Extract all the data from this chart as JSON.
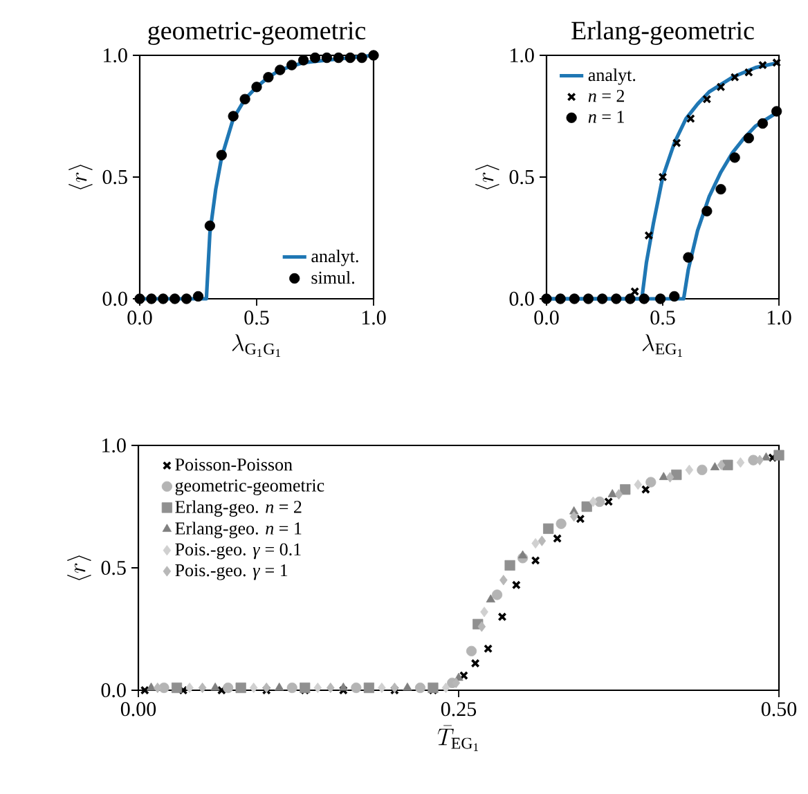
{
  "chart_data": [
    {
      "type": "scatter",
      "title": "geometric-geometric",
      "xlabel": "\\lambda_{\\mathrm{G_1G_1}}",
      "ylabel": "\\langle r \\rangle",
      "xlim": [
        0,
        1
      ],
      "ylim": [
        0,
        1
      ],
      "xticks": [
        {
          "value": 0,
          "label": "0.0"
        },
        {
          "value": 0.5,
          "label": "0.5"
        },
        {
          "value": 1,
          "label": "1.0"
        }
      ],
      "yticks": [
        {
          "value": 0,
          "label": "0.0"
        },
        {
          "value": 0.5,
          "label": "0.5"
        },
        {
          "value": 1,
          "label": "1.0"
        }
      ],
      "legend": "bottom right",
      "series": [
        {
          "name": "analyt.",
          "type": "line",
          "color": "#1f77b4",
          "x": [
            0,
            0.285,
            0.3,
            0.325,
            0.35,
            0.4,
            0.45,
            0.5,
            0.55,
            0.6,
            0.7,
            0.8,
            0.9,
            1.0
          ],
          "values": [
            0,
            0,
            0.27,
            0.45,
            0.58,
            0.74,
            0.82,
            0.87,
            0.91,
            0.94,
            0.97,
            0.98,
            0.99,
            1.0
          ]
        },
        {
          "name": "simul.",
          "marker": "circle",
          "color": "#000000",
          "x": [
            0,
            0.05,
            0.1,
            0.15,
            0.2,
            0.25,
            0.3,
            0.35,
            0.4,
            0.45,
            0.5,
            0.55,
            0.6,
            0.65,
            0.7,
            0.75,
            0.8,
            0.85,
            0.9,
            0.95,
            1.0
          ],
          "values": [
            0,
            0,
            0,
            0,
            0,
            0.01,
            0.3,
            0.59,
            0.75,
            0.82,
            0.87,
            0.91,
            0.94,
            0.96,
            0.98,
            0.99,
            0.99,
            0.99,
            0.99,
            0.99,
            1.0
          ]
        }
      ]
    },
    {
      "type": "scatter",
      "title": "Erlang-geometric",
      "xlabel": "\\lambda_{\\mathrm{EG_1}}",
      "ylabel": "\\langle r \\rangle",
      "xlim": [
        0,
        1
      ],
      "ylim": [
        0,
        1
      ],
      "xticks": [
        {
          "value": 0,
          "label": "0.0"
        },
        {
          "value": 0.5,
          "label": "0.5"
        },
        {
          "value": 1,
          "label": "1.0"
        }
      ],
      "yticks": [
        {
          "value": 0,
          "label": "0.0"
        },
        {
          "value": 0.5,
          "label": "0.5"
        },
        {
          "value": 1,
          "label": "1.0"
        }
      ],
      "legend": "top left",
      "series": [
        {
          "name": "analyt.",
          "type": "line",
          "color": "#1f77b4",
          "x": [
            0,
            0.41,
            0.43,
            0.46,
            0.5,
            0.55,
            0.6,
            0.65,
            0.7,
            0.8,
            0.9,
            1.0
          ],
          "values": [
            0,
            0,
            0.15,
            0.31,
            0.5,
            0.64,
            0.74,
            0.8,
            0.85,
            0.91,
            0.95,
            0.97
          ]
        },
        {
          "name": "*n* = 2",
          "marker": "cross",
          "color": "#000000",
          "x": [
            0.38,
            0.44,
            0.5,
            0.56,
            0.62,
            0.69,
            0.75,
            0.81,
            0.87,
            0.93,
            0.99
          ],
          "values": [
            0.03,
            0.26,
            0.5,
            0.64,
            0.74,
            0.82,
            0.87,
            0.91,
            0.93,
            0.96,
            0.97
          ]
        },
        {
          "name": "*n* = 1",
          "marker": "circle",
          "color": "#000000",
          "x": [
            0,
            0.06,
            0.12,
            0.18,
            0.24,
            0.3,
            0.36,
            0.42,
            0.49,
            0.55,
            0.61,
            0.69,
            0.75,
            0.81,
            0.87,
            0.93,
            0.99
          ],
          "values": [
            0,
            0,
            0,
            0,
            0,
            0,
            0,
            0,
            0,
            0.01,
            0.17,
            0.36,
            0.45,
            0.58,
            0.66,
            0.72,
            0.77
          ]
        },
        {
          "type": "line",
          "color": "#1f77b4",
          "x": [
            0,
            0.59,
            0.61,
            0.65,
            0.7,
            0.75,
            0.8,
            0.85,
            0.9,
            0.95,
            1.0
          ],
          "values": [
            0,
            0,
            0.12,
            0.28,
            0.42,
            0.52,
            0.6,
            0.66,
            0.71,
            0.74,
            0.77
          ]
        }
      ]
    },
    {
      "type": "scatter",
      "xlabel": "\\bar{T}_{\\mathrm{EG_1}}",
      "ylabel": "\\langle r \\rangle",
      "xlim": [
        0,
        0.5
      ],
      "ylim": [
        0,
        1
      ],
      "xticks": [
        {
          "value": 0,
          "label": "0.00"
        },
        {
          "value": 0.25,
          "label": "0.25"
        },
        {
          "value": 0.5,
          "label": "0.50"
        }
      ],
      "yticks": [
        {
          "value": 0,
          "label": "0.0"
        },
        {
          "value": 0.5,
          "label": "0.5"
        },
        {
          "value": 1,
          "label": "1.0"
        }
      ],
      "legend": "top left",
      "series": [
        {
          "name": "Poisson-Poisson",
          "marker": "cross",
          "color": "#000000",
          "x": [
            0.005,
            0.035,
            0.065,
            0.1,
            0.13,
            0.16,
            0.2,
            0.23,
            0.254,
            0.263,
            0.273,
            0.284,
            0.295,
            0.31,
            0.327,
            0.345,
            0.367,
            0.396,
            0.42,
            0.439,
            0.495
          ],
          "values": [
            0,
            0,
            0,
            0,
            0,
            0,
            0,
            0,
            0.06,
            0.11,
            0.17,
            0.3,
            0.43,
            0.53,
            0.62,
            0.7,
            0.77,
            0.82,
            null,
            null,
            0.95
          ]
        },
        {
          "name": "geometric-geometric",
          "marker": "circle",
          "color": "#b4b4b4",
          "x": [
            0.02,
            0.07,
            0.12,
            0.17,
            0.22,
            0.245,
            0.26,
            0.28,
            0.3,
            0.33,
            0.36,
            0.4,
            0.44,
            0.48
          ],
          "values": [
            0.01,
            0.01,
            0.01,
            0.01,
            0.01,
            0.03,
            0.16,
            0.39,
            0.54,
            0.68,
            0.77,
            0.85,
            0.9,
            0.94
          ]
        },
        {
          "name": "Erlang-geo. *n* = 2",
          "marker": "square",
          "color": "#909090",
          "x": [
            0.03,
            0.08,
            0.13,
            0.18,
            0.23,
            0.265,
            0.29,
            0.32,
            0.35,
            0.38,
            0.42,
            0.46,
            0.5
          ],
          "values": [
            0.01,
            0.01,
            0.01,
            0.01,
            0.01,
            0.27,
            0.51,
            0.66,
            0.75,
            0.82,
            0.88,
            0.92,
            0.96
          ]
        },
        {
          "name": "Erlang-geo. *n* = 1",
          "marker": "triangle",
          "color": "#808080",
          "x": [
            0.01,
            0.06,
            0.11,
            0.16,
            0.21,
            0.25,
            0.275,
            0.3,
            0.34,
            0.37,
            0.41,
            0.45,
            0.49
          ],
          "values": [
            0.01,
            0.01,
            0.01,
            0.01,
            0.01,
            0.05,
            0.37,
            0.55,
            0.73,
            0.8,
            0.87,
            0.91,
            0.95
          ]
        },
        {
          "name": "Pois.-geo. *γ* = 0.1",
          "marker": "diamond",
          "color": "#d0d0d0",
          "x": [
            0.04,
            0.09,
            0.14,
            0.19,
            0.24,
            0.27,
            0.31,
            0.355,
            0.39,
            0.43,
            0.47
          ],
          "values": [
            0.01,
            0.01,
            0.01,
            0.01,
            0.01,
            0.32,
            0.6,
            0.77,
            0.84,
            0.9,
            0.93
          ]
        },
        {
          "name": "Pois.-geo. *γ* = 1",
          "marker": "diamond",
          "color": "#b8b8b8",
          "x": [
            0.015,
            0.05,
            0.1,
            0.15,
            0.2,
            0.248,
            0.268,
            0.285,
            0.315,
            0.34,
            0.375,
            0.415,
            0.455,
            0.485
          ],
          "values": [
            0.01,
            0.01,
            0.01,
            0.01,
            0.01,
            0.03,
            0.26,
            0.45,
            0.61,
            0.71,
            0.8,
            0.87,
            0.92,
            0.94
          ]
        }
      ]
    }
  ]
}
